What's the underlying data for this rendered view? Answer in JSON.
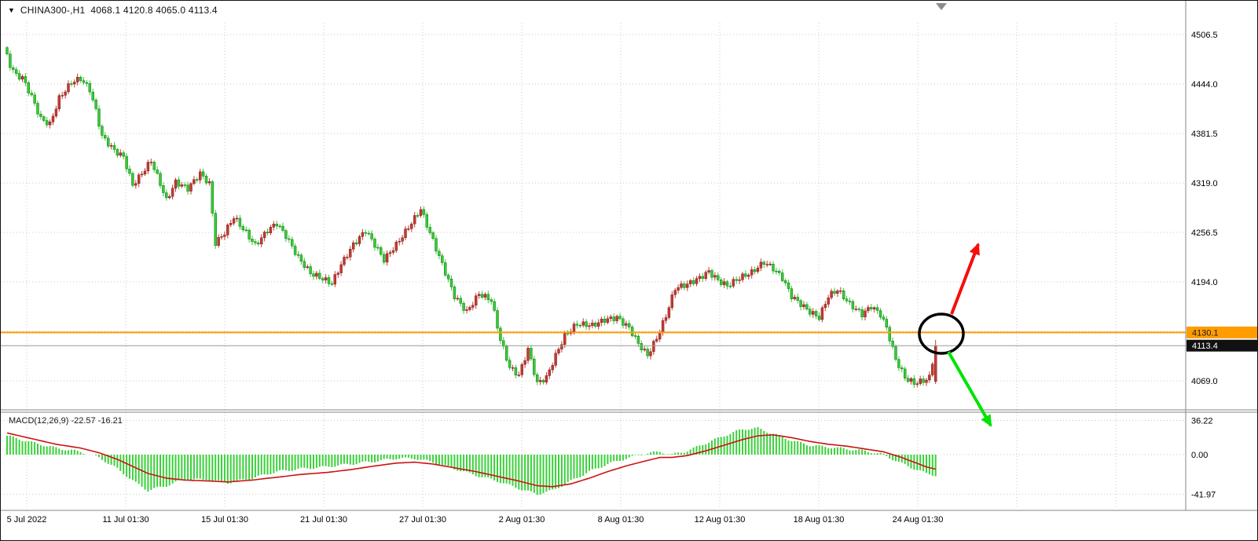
{
  "header": {
    "dropdown_icon": "▼",
    "symbol": "CHINA300-",
    "timeframe": "H1",
    "text": "CHINA300-,H1  4068.1 4120.8 4065.0 4113.4"
  },
  "colors": {
    "background": "#ffffff",
    "grid": "#c9c9c9",
    "bull": "#c33a32",
    "bear": "#33cc33",
    "hline": "#ff9c00",
    "hline_text": "#1a1a1a",
    "last_price_label_bg": "#111111",
    "last_price_label_text": "#ffffff",
    "macd_histogram": "#3ad13a",
    "macd_signal": "#cc1111",
    "arrow_up": "#f60d0d",
    "arrow_down": "#00e400",
    "annotation_circle": "#000000",
    "axis_text": "#000000",
    "separator": "#848484",
    "shift_marker": "#8c8c8c"
  },
  "chart_data": [
    {
      "type": "candlestick",
      "title": "CHINA300-,H1",
      "symbol": "CHINA300-",
      "timeframe": "H1",
      "last_candle": {
        "open": 4068.1,
        "high": 4120.8,
        "low": 4065.0,
        "close": 4113.4
      },
      "ylim": [
        4030,
        4515
      ],
      "y_ticks": [
        4506.5,
        4444.0,
        4381.5,
        4319.0,
        4256.5,
        4194.0,
        4069.0
      ],
      "y_grid_extra": [
        4131.5
      ],
      "horizontal_line": {
        "value": 4130.1,
        "label": "4130.1"
      },
      "current_price": {
        "value": 4113.4,
        "label": "4113.4"
      },
      "x_ticks": [
        "5 Jul 2022",
        "11 Jul 01:30",
        "15 Jul 01:30",
        "21 Jul 01:30",
        "27 Jul 01:30",
        "2 Aug 01:30",
        "8 Aug 01:30",
        "12 Aug 01:30",
        "18 Aug 01:30",
        "24 Aug 01:30"
      ],
      "price_path": [
        [
          0,
          4490
        ],
        [
          2,
          4468
        ],
        [
          4,
          4455
        ],
        [
          6,
          4452
        ],
        [
          9,
          4428
        ],
        [
          12,
          4400
        ],
        [
          15,
          4393
        ],
        [
          18,
          4426
        ],
        [
          22,
          4446
        ],
        [
          25,
          4451
        ],
        [
          28,
          4437
        ],
        [
          30,
          4410
        ],
        [
          32,
          4378
        ],
        [
          36,
          4360
        ],
        [
          39,
          4352
        ],
        [
          42,
          4316
        ],
        [
          45,
          4331
        ],
        [
          48,
          4347
        ],
        [
          51,
          4318
        ],
        [
          53,
          4297
        ],
        [
          56,
          4320
        ],
        [
          60,
          4312
        ],
        [
          64,
          4331
        ],
        [
          67,
          4318
        ],
        [
          69,
          4243
        ],
        [
          72,
          4256
        ],
        [
          75,
          4276
        ],
        [
          79,
          4256
        ],
        [
          82,
          4240
        ],
        [
          86,
          4259
        ],
        [
          89,
          4268
        ],
        [
          92,
          4252
        ],
        [
          96,
          4225
        ],
        [
          100,
          4205
        ],
        [
          104,
          4198
        ],
        [
          107,
          4192
        ],
        [
          110,
          4216
        ],
        [
          114,
          4241
        ],
        [
          118,
          4259
        ],
        [
          121,
          4241
        ],
        [
          124,
          4222
        ],
        [
          128,
          4241
        ],
        [
          132,
          4263
        ],
        [
          136,
          4286
        ],
        [
          139,
          4256
        ],
        [
          143,
          4216
        ],
        [
          147,
          4176
        ],
        [
          151,
          4156
        ],
        [
          155,
          4179
        ],
        [
          159,
          4171
        ],
        [
          162,
          4121
        ],
        [
          165,
          4086
        ],
        [
          168,
          4076
        ],
        [
          171,
          4109
        ],
        [
          174,
          4066
        ],
        [
          177,
          4073
        ],
        [
          180,
          4101
        ],
        [
          183,
          4126
        ],
        [
          187,
          4141
        ],
        [
          192,
          4139
        ],
        [
          196,
          4146
        ],
        [
          200,
          4149
        ],
        [
          204,
          4136
        ],
        [
          207,
          4116
        ],
        [
          210,
          4101
        ],
        [
          213,
          4123
        ],
        [
          216,
          4151
        ],
        [
          219,
          4186
        ],
        [
          223,
          4191
        ],
        [
          227,
          4199
        ],
        [
          230,
          4207
        ],
        [
          233,
          4196
        ],
        [
          236,
          4189
        ],
        [
          240,
          4199
        ],
        [
          244,
          4206
        ],
        [
          248,
          4219
        ],
        [
          251,
          4211
        ],
        [
          254,
          4199
        ],
        [
          257,
          4176
        ],
        [
          260,
          4166
        ],
        [
          263,
          4156
        ],
        [
          266,
          4149
        ],
        [
          269,
          4176
        ],
        [
          272,
          4184
        ],
        [
          276,
          4166
        ],
        [
          280,
          4153
        ],
        [
          283,
          4163
        ],
        [
          286,
          4153
        ],
        [
          288,
          4136
        ],
        [
          291,
          4096
        ],
        [
          294,
          4073
        ],
        [
          297,
          4066
        ],
        [
          300,
          4069
        ],
        [
          302,
          4073
        ],
        [
          304,
          4113
        ]
      ],
      "annotations": {
        "entry_circle": {
          "shape": "ellipse",
          "color": "#000000"
        },
        "bullish_arrow": {
          "shape": "arrow",
          "direction": "up-right",
          "color": "#f60d0d"
        },
        "bearish_arrow": {
          "shape": "arrow",
          "direction": "down-right",
          "color": "#00e400"
        },
        "shift_marker": {
          "shape": "triangle",
          "color": "#8c8c8c"
        }
      }
    },
    {
      "type": "macd",
      "label": "MACD(12,26,9) -22.57 -16.21",
      "name": "MACD",
      "params": [
        12,
        26,
        9
      ],
      "macd_value": -22.57,
      "signal_value": -16.21,
      "y_ticks": [
        36.22,
        0.0,
        -41.97
      ],
      "path": [
        [
          0,
          20,
          23
        ],
        [
          8,
          13,
          17
        ],
        [
          16,
          7,
          11
        ],
        [
          24,
          3,
          7
        ],
        [
          30,
          -3,
          2
        ],
        [
          36,
          -15,
          -5
        ],
        [
          42,
          -30,
          -14
        ],
        [
          46,
          -38,
          -20
        ],
        [
          52,
          -33,
          -25
        ],
        [
          58,
          -26,
          -27
        ],
        [
          66,
          -27,
          -28
        ],
        [
          72,
          -30,
          -29
        ],
        [
          80,
          -25,
          -27
        ],
        [
          88,
          -18,
          -24
        ],
        [
          96,
          -15,
          -21
        ],
        [
          104,
          -13,
          -19
        ],
        [
          112,
          -10,
          -16
        ],
        [
          120,
          -7,
          -12
        ],
        [
          127,
          -4,
          -9
        ],
        [
          133,
          -4,
          -8
        ],
        [
          139,
          -8,
          -10
        ],
        [
          146,
          -15,
          -14
        ],
        [
          153,
          -22,
          -18
        ],
        [
          160,
          -28,
          -23
        ],
        [
          167,
          -36,
          -28
        ],
        [
          173,
          -42,
          -33
        ],
        [
          178,
          -38,
          -34
        ],
        [
          184,
          -28,
          -31
        ],
        [
          190,
          -18,
          -25
        ],
        [
          196,
          -10,
          -18
        ],
        [
          202,
          -4,
          -12
        ],
        [
          208,
          1,
          -7
        ],
        [
          213,
          3,
          -3
        ],
        [
          217,
          0,
          -3
        ],
        [
          222,
          4,
          -1
        ],
        [
          228,
          12,
          4
        ],
        [
          234,
          20,
          10
        ],
        [
          240,
          27,
          16
        ],
        [
          245,
          28,
          20
        ],
        [
          250,
          22,
          21
        ],
        [
          256,
          15,
          18
        ],
        [
          262,
          10,
          14
        ],
        [
          268,
          8,
          11
        ],
        [
          274,
          6,
          9
        ],
        [
          280,
          4,
          6
        ],
        [
          286,
          0,
          3
        ],
        [
          291,
          -8,
          -2
        ],
        [
          296,
          -15,
          -8
        ],
        [
          300,
          -20,
          -13
        ],
        [
          304,
          -22.57,
          -16.21
        ]
      ]
    }
  ]
}
